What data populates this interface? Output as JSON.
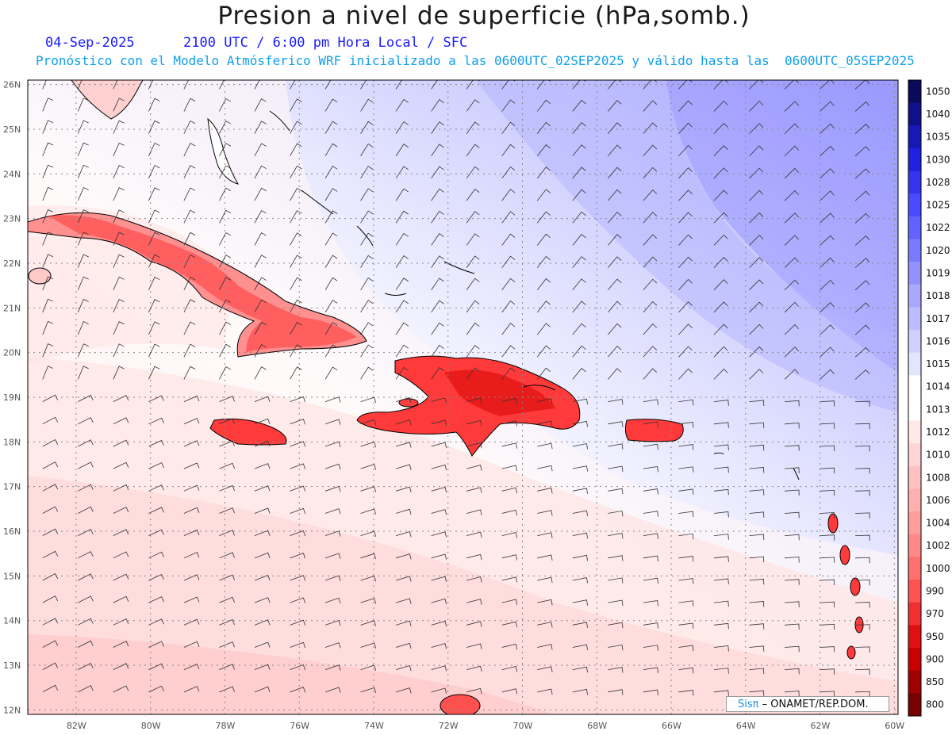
{
  "header": {
    "title": "Presion a nivel de superficie (hPa,somb.)",
    "date": "04-Sep-2025",
    "time_info": "2100 UTC / 6:00 pm Hora Local / SFC",
    "model_info": "Pronóstico con el Modelo Atmósferico WRF inicializado a las 0600UTC_02SEP2025 y válido hasta las  0600UTC_05SEP2025"
  },
  "axes": {
    "lat_labels": [
      "26N",
      "25N",
      "24N",
      "23N",
      "22N",
      "21N",
      "20N",
      "19N",
      "18N",
      "17N",
      "16N",
      "15N",
      "14N",
      "13N",
      "12N"
    ],
    "lon_labels": [
      "82W",
      "80W",
      "78W",
      "76W",
      "74W",
      "72W",
      "70W",
      "68W",
      "66W",
      "64W",
      "62W",
      "60W"
    ],
    "lat_range": [
      11.9,
      26.1
    ],
    "lon_range": [
      -83.3,
      -59.9
    ]
  },
  "colorbar": {
    "levels": [
      "1050",
      "1040",
      "1035",
      "1030",
      "1028",
      "1025",
      "1022",
      "1020",
      "1019",
      "1018",
      "1017",
      "1016",
      "1015",
      "1014",
      "1013",
      "1012",
      "1010",
      "1008",
      "1006",
      "1004",
      "1002",
      "1000",
      "990",
      "970",
      "950",
      "900",
      "850",
      "800"
    ],
    "colors": [
      "#0a0a5a",
      "#10108a",
      "#1818b8",
      "#2020e0",
      "#3535f0",
      "#4a4aff",
      "#6262ff",
      "#7a7aff",
      "#9292ff",
      "#a8a8ff",
      "#bcbcff",
      "#d0d0ff",
      "#e4e4ff",
      "#ffffff",
      "#ffffff",
      "#ffe8e8",
      "#ffd4d4",
      "#ffc2c2",
      "#ffb0b0",
      "#ff9c9c",
      "#ff8888",
      "#ff7070",
      "#ff5252",
      "#f03030",
      "#e01010",
      "#c80000",
      "#a00000",
      "#780000"
    ]
  },
  "credit": {
    "brand": "Sisπ",
    "text": " –  ONAMET/REP.DOM."
  }
}
